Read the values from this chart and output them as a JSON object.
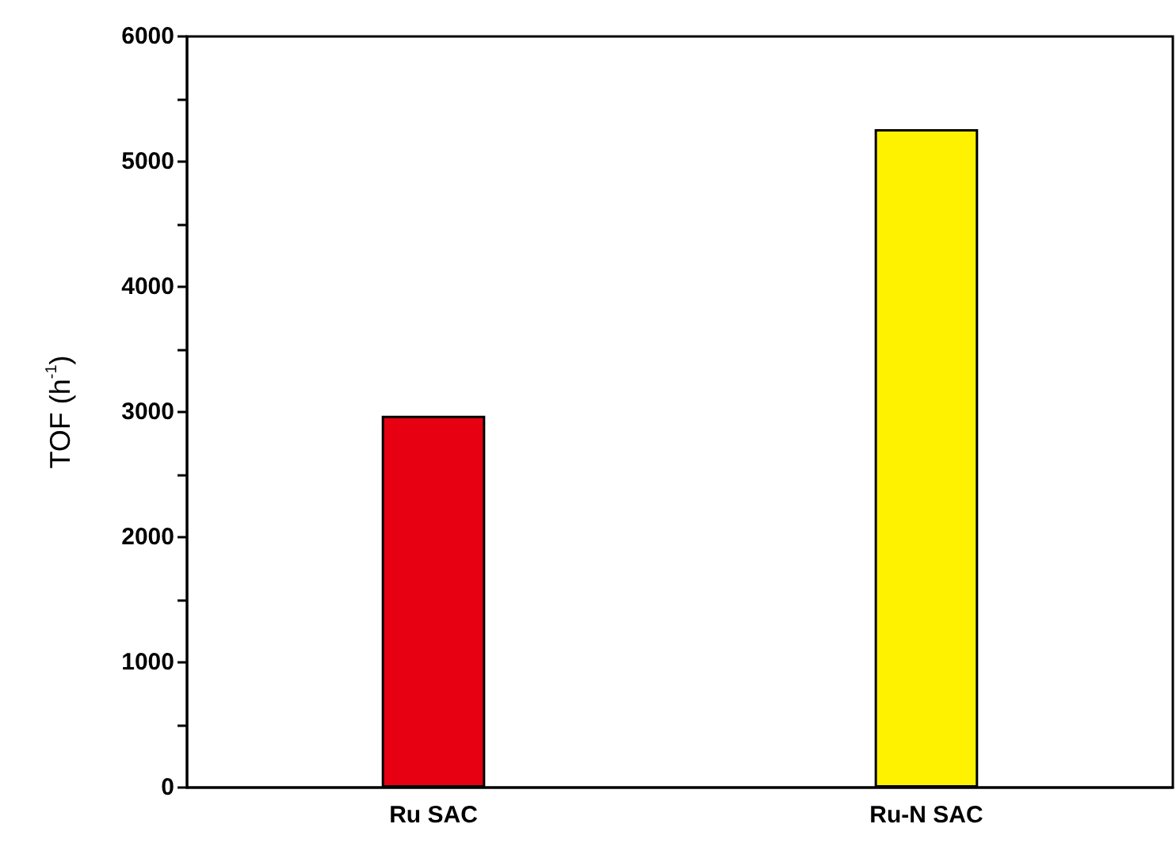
{
  "chart_data": {
    "type": "bar",
    "ylabel": "TOF (h$^{-1}$)",
    "categories": [
      "Ru SAC",
      "Ru-N SAC"
    ],
    "values": [
      2970,
      5260
    ],
    "colors": [
      "#e60012",
      "#fff200"
    ],
    "ylim": [
      0,
      6000
    ],
    "yticks": [
      0,
      {
        "value": 500,
        "label": null
      },
      1000,
      {
        "value": 1500,
        "label": null
      },
      2000,
      {
        "value": 2500,
        "label": null
      },
      3000,
      {
        "value": 3500,
        "label": null
      },
      4000,
      {
        "value": 4500,
        "label": null
      },
      5000,
      {
        "value": 5500,
        "label": null
      },
      6000
    ],
    "grid": false
  }
}
